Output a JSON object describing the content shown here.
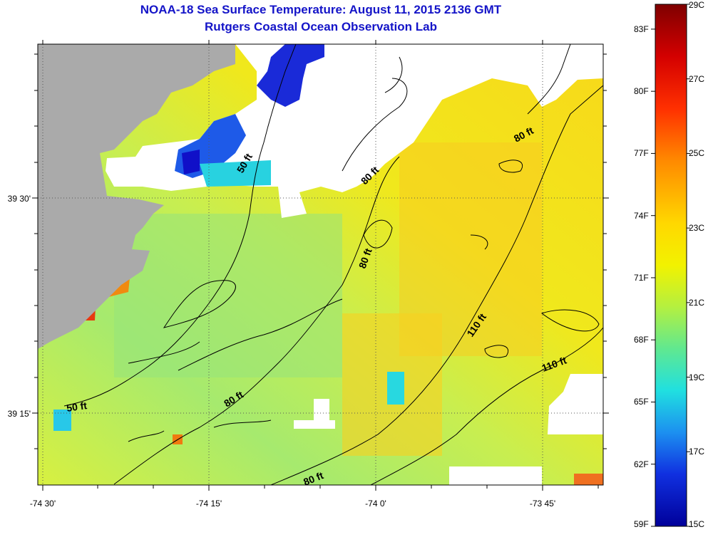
{
  "title": "NOAA-18 Sea Surface Temperature:  August 11, 2015 2136 GMT",
  "subtitle": "Rutgers Coastal Ocean Observation Lab",
  "colors": {
    "land": "#aaaaaa",
    "cloud": "#ffffff",
    "title_text": "#1414c8",
    "contour": "#000000"
  },
  "axes": {
    "x_ticks": [
      "-74 30'",
      "-74 15'",
      "-74 0'",
      "-73 45'"
    ],
    "y_ticks": [
      "39 30'",
      "39 15'"
    ]
  },
  "depth_labels": [
    "50 ft",
    "50 ft",
    "80 ft",
    "80 ft",
    "80 ft",
    "80 ft",
    "80 ft",
    "110 ft",
    "110 ft"
  ],
  "colorbar": {
    "f_labels": [
      "83F",
      "80F",
      "77F",
      "74F",
      "71F",
      "68F",
      "65F",
      "62F",
      "59F"
    ],
    "c_labels": [
      "29C",
      "27C",
      "25C",
      "23C",
      "21C",
      "19C",
      "17C",
      "15C"
    ],
    "min_c": 15,
    "max_c": 29
  }
}
